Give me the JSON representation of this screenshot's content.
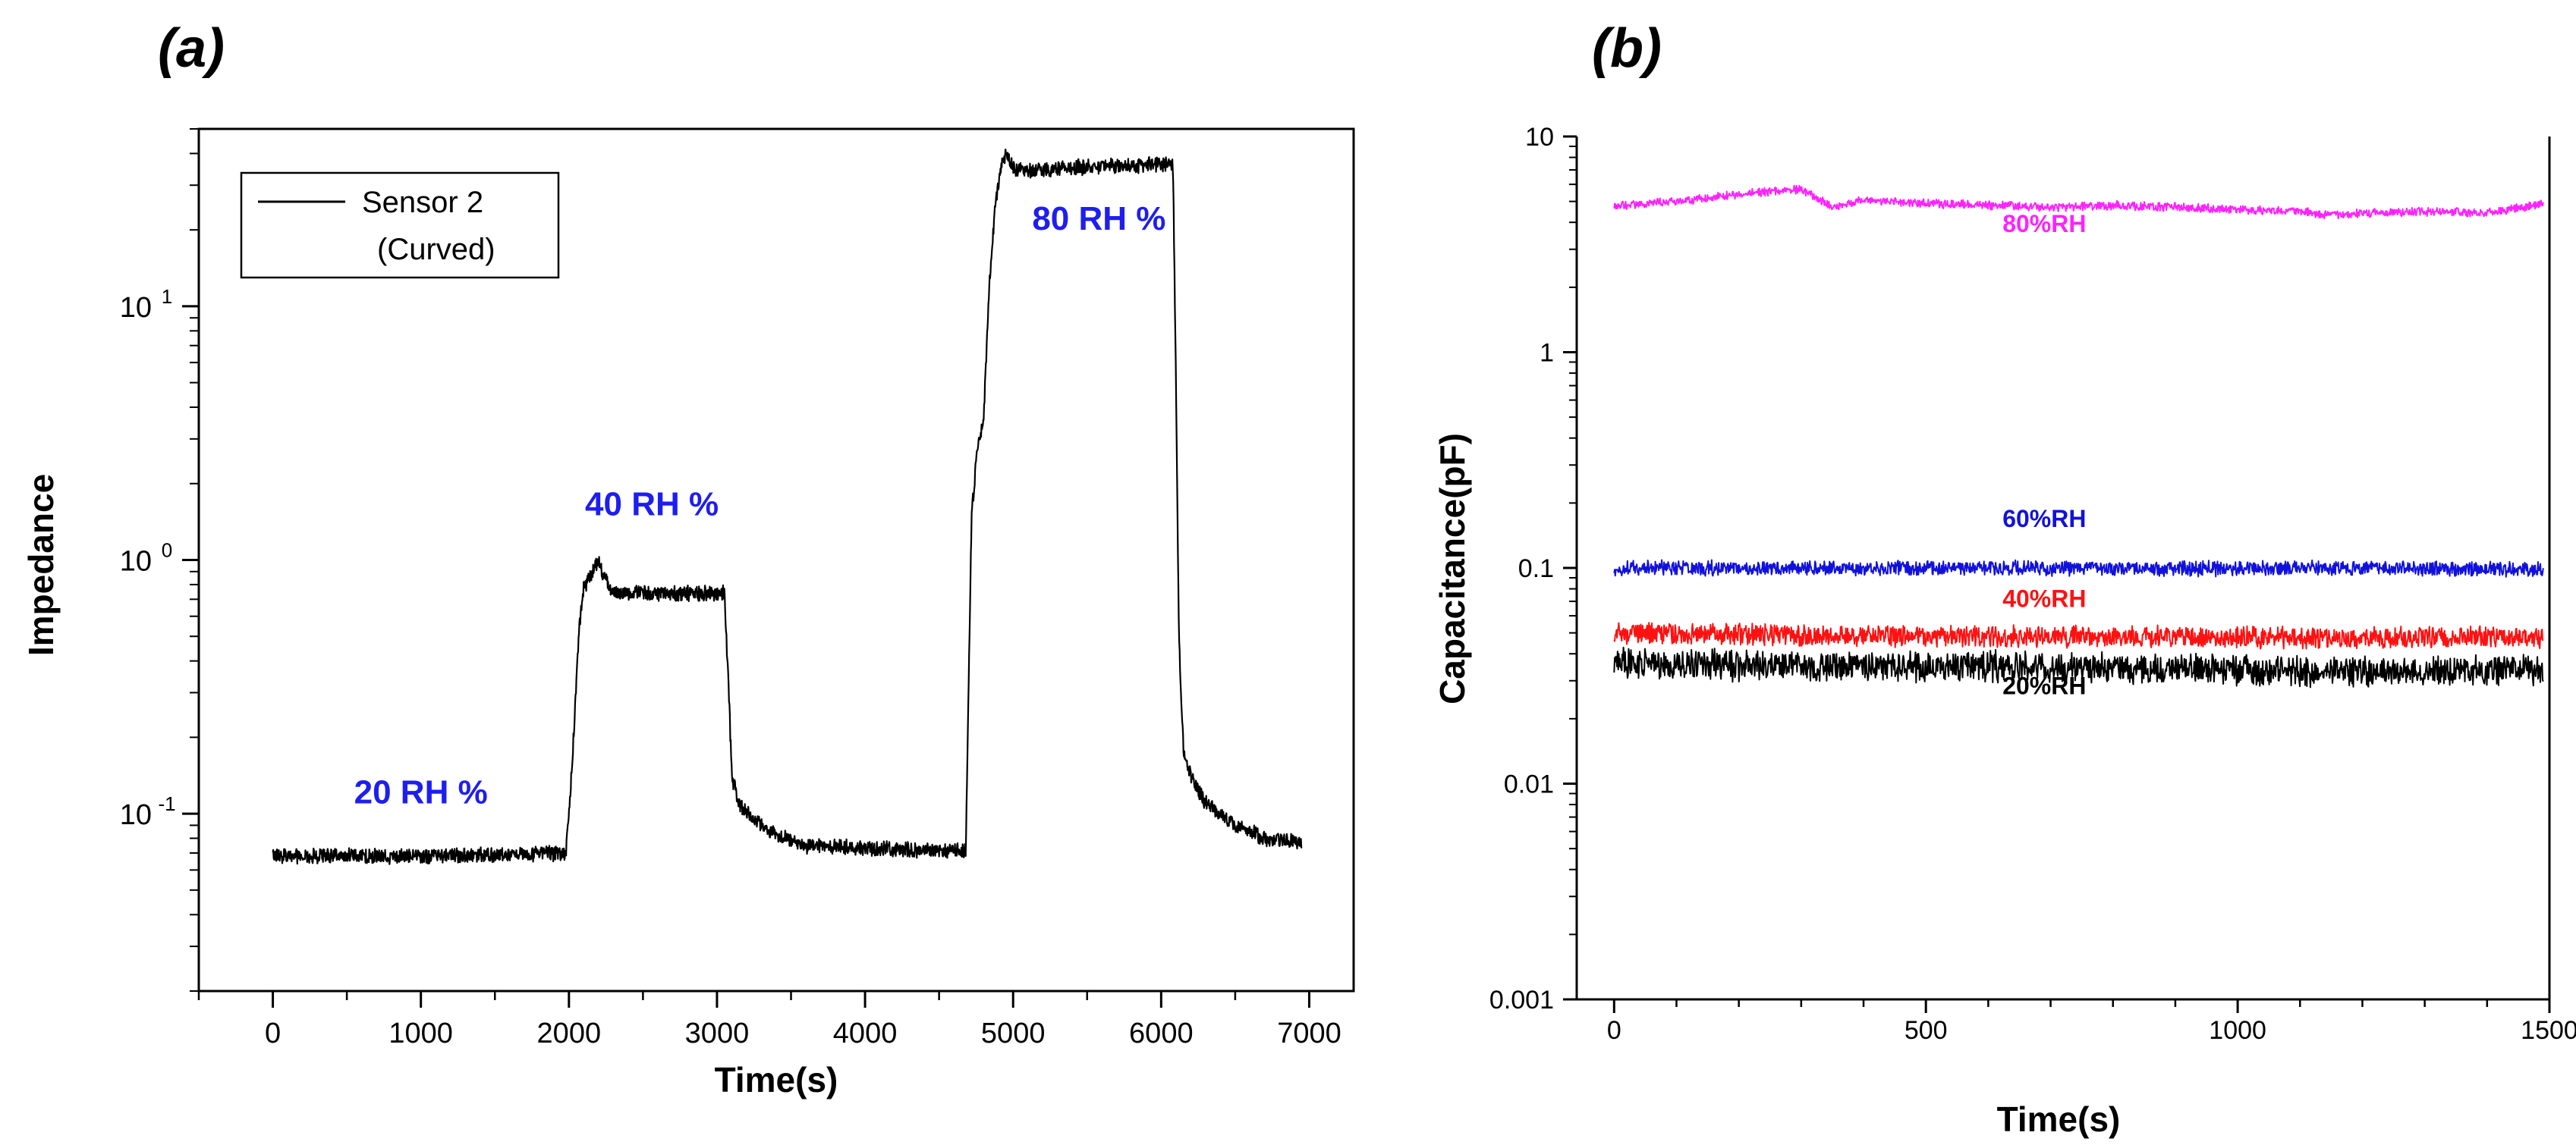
{
  "panels": {
    "a": {
      "label": "(a)"
    },
    "b": {
      "label": "(b)"
    }
  },
  "chart_data": [
    {
      "type": "line",
      "id": "a",
      "title": "",
      "xlabel": "Time(s)",
      "ylabel": "Impedance",
      "yscale": "log",
      "xlim": [
        -500,
        7300
      ],
      "ylim": [
        0.02,
        50
      ],
      "xticks": [
        0,
        1000,
        2000,
        3000,
        4000,
        5000,
        6000,
        7000
      ],
      "yticks": [
        {
          "value": 0.1,
          "base": "10",
          "exp": "-1"
        },
        {
          "value": 1,
          "base": "10",
          "exp": "0"
        },
        {
          "value": 10,
          "base": "10",
          "exp": "1"
        }
      ],
      "legend": {
        "line1": "Sensor 2",
        "line2": "(Curved)",
        "position": "top-left"
      },
      "series": [
        {
          "name": "Sensor 2 (Curved)",
          "color": "#000000",
          "noise": 0.06,
          "x": [
            0,
            500,
            1000,
            1500,
            1980,
            2020,
            2070,
            2100,
            2150,
            2200,
            2240,
            2300,
            2500,
            2800,
            3050,
            3080,
            3100,
            3150,
            3250,
            3400,
            3600,
            4000,
            4500,
            4680,
            4720,
            4760,
            4800,
            4840,
            4880,
            4920,
            4960,
            5000,
            5100,
            5300,
            5600,
            5900,
            6080,
            6100,
            6120,
            6150,
            6200,
            6300,
            6500,
            6700,
            6950
          ],
          "values": [
            0.068,
            0.068,
            0.068,
            0.069,
            0.07,
            0.15,
            0.55,
            0.78,
            0.88,
            1.0,
            0.85,
            0.74,
            0.74,
            0.74,
            0.74,
            0.3,
            0.14,
            0.11,
            0.095,
            0.082,
            0.075,
            0.073,
            0.071,
            0.072,
            1.5,
            2.8,
            3.5,
            12,
            25,
            36,
            40,
            35,
            34,
            35,
            35.5,
            36,
            36,
            5,
            0.5,
            0.18,
            0.14,
            0.11,
            0.09,
            0.08,
            0.077
          ]
        }
      ],
      "annotations": [
        {
          "text": "20 RH %",
          "x": 1000,
          "y": 0.11,
          "color": "#1e1ef0"
        },
        {
          "text": "40 RH %",
          "x": 2560,
          "y": 1.5,
          "color": "#1e1ef0"
        },
        {
          "text": "80 RH %",
          "x": 5580,
          "y": 20,
          "color": "#1e1ef0"
        }
      ]
    },
    {
      "type": "line",
      "id": "b",
      "title": "",
      "xlabel": "Time(s)",
      "ylabel": "Capacitance(pF)",
      "yscale": "log",
      "xlim": [
        -60,
        1500
      ],
      "ylim": [
        0.001,
        10
      ],
      "xticks": [
        0,
        500,
        1000,
        1500
      ],
      "yticks": [
        {
          "value": 0.001,
          "label": "0.001"
        },
        {
          "value": 0.01,
          "label": "0.01"
        },
        {
          "value": 0.1,
          "label": "0.1"
        },
        {
          "value": 1,
          "label": "1"
        },
        {
          "value": 10,
          "label": "10"
        }
      ],
      "series": [
        {
          "name": "80%RH",
          "color": "#ff22ff",
          "noise": 0.04,
          "x": [
            0,
            100,
            200,
            300,
            320,
            350,
            400,
            500,
            600,
            700,
            800,
            900,
            1000,
            1100,
            1150,
            1200,
            1300,
            1400,
            1490
          ],
          "values": [
            4.8,
            5.0,
            5.4,
            5.7,
            5.3,
            4.7,
            5.1,
            4.9,
            4.8,
            4.7,
            4.8,
            4.7,
            4.6,
            4.5,
            4.3,
            4.4,
            4.5,
            4.4,
            4.9
          ]
        },
        {
          "name": "60%RH",
          "color": "#1111dd",
          "noise": 0.07,
          "x": [
            0,
            300,
            600,
            900,
            1200,
            1490
          ],
          "values": [
            0.1,
            0.1,
            0.1,
            0.099,
            0.1,
            0.098
          ]
        },
        {
          "name": "40%RH",
          "color": "#ff1111",
          "noise": 0.1,
          "x": [
            0,
            300,
            600,
            900,
            1200,
            1490
          ],
          "values": [
            0.05,
            0.049,
            0.048,
            0.048,
            0.047,
            0.048
          ]
        },
        {
          "name": "20%RH",
          "color": "#000000",
          "noise": 0.14,
          "x": [
            0,
            300,
            600,
            900,
            1200,
            1490
          ],
          "values": [
            0.036,
            0.035,
            0.035,
            0.034,
            0.033,
            0.034
          ]
        }
      ],
      "annotations": [
        {
          "text": "80%RH",
          "x": 690,
          "y": 3.6,
          "color": "#ff22ff"
        },
        {
          "text": "60%RH",
          "x": 690,
          "y": 0.155,
          "color": "#1111dd"
        },
        {
          "text": "40%RH",
          "x": 690,
          "y": 0.066,
          "color": "#ff1111"
        },
        {
          "text": "20%RH",
          "x": 690,
          "y": 0.026,
          "color": "#000000"
        }
      ]
    }
  ]
}
